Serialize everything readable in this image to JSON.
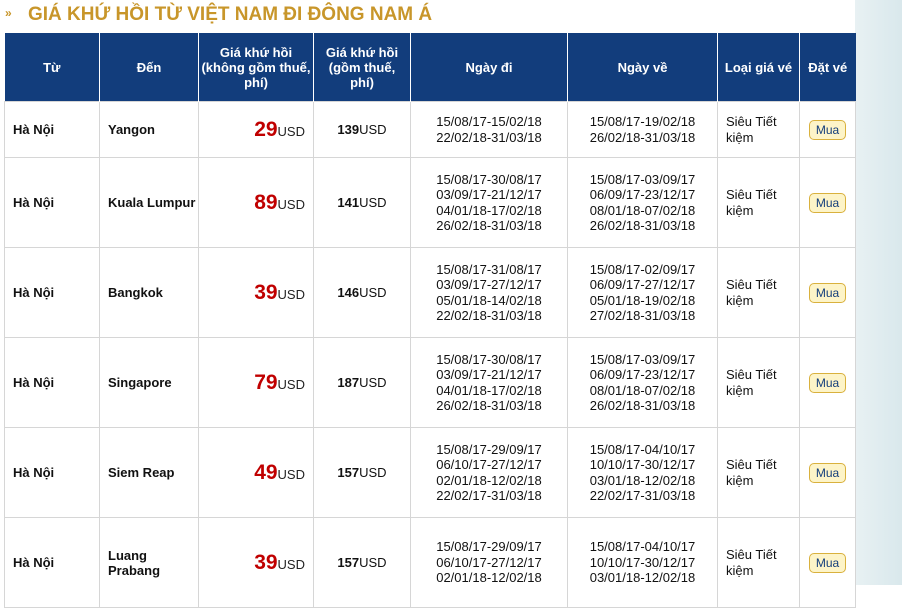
{
  "title": "GIÁ KHỨ HỒI TỪ VIỆT NAM ĐI ĐÔNG NAM Á",
  "columns": {
    "from": "Từ",
    "to": "Đến",
    "price": "Giá khứ hồi (không gồm thuế, phí)",
    "price_tax": "Giá khứ hồi (gồm thuế, phí)",
    "depart": "Ngày đi",
    "return": "Ngày về",
    "fare_type": "Loại giá vé",
    "book": "Đặt vé"
  },
  "rows": [
    {
      "from": "Hà Nội",
      "to": "Yangon",
      "price": "29",
      "currency": "USD",
      "price_tax": "139",
      "depart": [
        "15/08/17-15/02/18",
        "22/02/18-31/03/18"
      ],
      "return": [
        "15/08/17-19/02/18",
        "26/02/18-31/03/18"
      ],
      "fare_type": "Siêu Tiết kiệm",
      "buy": "Mua"
    },
    {
      "from": "Hà Nội",
      "to": "Kuala Lumpur",
      "price": "89",
      "currency": "USD",
      "price_tax": "141",
      "depart": [
        "15/08/17-30/08/17",
        "03/09/17-21/12/17",
        "04/01/18-17/02/18",
        "26/02/18-31/03/18"
      ],
      "return": [
        "15/08/17-03/09/17",
        "06/09/17-23/12/17",
        "08/01/18-07/02/18",
        "26/02/18-31/03/18"
      ],
      "fare_type": "Siêu Tiết kiệm",
      "buy": "Mua"
    },
    {
      "from": "Hà Nội",
      "to": "Bangkok",
      "price": "39",
      "currency": "USD",
      "price_tax": "146",
      "depart": [
        "15/08/17-31/08/17",
        "03/09/17-27/12/17",
        "05/01/18-14/02/18",
        "22/02/18-31/03/18"
      ],
      "return": [
        "15/08/17-02/09/17",
        "06/09/17-27/12/17",
        "05/01/18-19/02/18",
        "27/02/18-31/03/18"
      ],
      "fare_type": "Siêu Tiết kiệm",
      "buy": "Mua"
    },
    {
      "from": "Hà Nội",
      "to": "Singapore",
      "price": "79",
      "currency": "USD",
      "price_tax": "187",
      "depart": [
        "15/08/17-30/08/17",
        "03/09/17-21/12/17",
        "04/01/18-17/02/18",
        "26/02/18-31/03/18"
      ],
      "return": [
        "15/08/17-03/09/17",
        "06/09/17-23/12/17",
        "08/01/18-07/02/18",
        "26/02/18-31/03/18"
      ],
      "fare_type": "Siêu Tiết kiệm",
      "buy": "Mua"
    },
    {
      "from": "Hà Nội",
      "to": "Siem Reap",
      "price": "49",
      "currency": "USD",
      "price_tax": "157",
      "depart": [
        "15/08/17-29/09/17",
        "06/10/17-27/12/17",
        "02/01/18-12/02/18",
        "22/02/17-31/03/18"
      ],
      "return": [
        "15/08/17-04/10/17",
        "10/10/17-30/12/17",
        "03/01/18-12/02/18",
        "22/02/17-31/03/18"
      ],
      "fare_type": "Siêu Tiết kiệm",
      "buy": "Mua"
    },
    {
      "from": "Hà Nội",
      "to": "Luang Prabang",
      "price": "39",
      "currency": "USD",
      "price_tax": "157",
      "depart": [
        "15/08/17-29/09/17",
        "06/10/17-27/12/17",
        "02/01/18-12/02/18"
      ],
      "return": [
        "15/08/17-04/10/17",
        "10/10/17-30/12/17",
        "03/01/18-12/02/18"
      ],
      "fare_type": "Siêu Tiết kiệm",
      "buy": "Mua"
    }
  ]
}
